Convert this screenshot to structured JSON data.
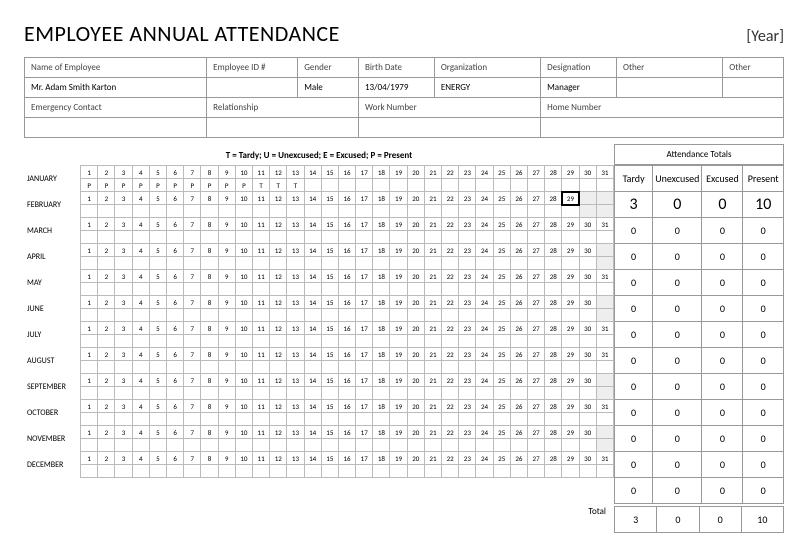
{
  "title": "EMPLOYEE ANNUAL ATTENDANCE",
  "year_label": "[Year]",
  "info": {
    "name_lbl": "Name of Employee",
    "name_val": "Mr. Adam Smith Karton",
    "empid_lbl": "Employee ID #",
    "empid_val": "",
    "gender_lbl": "Gender",
    "gender_val": "Male",
    "birth_lbl": "Birth Date",
    "birth_val": "13/04/1979",
    "org_lbl": "Organization",
    "org_val": "ENERGY",
    "desig_lbl": "Designation",
    "desig_val": "Manager",
    "other_lbl": "Other",
    "other2_lbl": "Other",
    "emerg_lbl": "Emergency Contact",
    "rel_lbl": "Relationship",
    "work_lbl": "Work Number",
    "home_lbl": "Home Number"
  },
  "legend": "T = Tardy; U = Unexcused; E = Excused; P = Present",
  "totals_header": "Attendance Totals",
  "tot_cols": {
    "t": "Tardy",
    "u": "Unexcused",
    "e": "Excused",
    "p": "Present"
  },
  "months": [
    {
      "name": "JANUARY",
      "days": 31,
      "highlight": null,
      "marks": {
        "1": "P",
        "2": "P",
        "3": "P",
        "4": "P",
        "5": "P",
        "6": "P",
        "7": "P",
        "8": "P",
        "9": "P",
        "10": "P",
        "11": "T",
        "12": "T",
        "13": "T"
      },
      "tot": [
        "3",
        "0",
        "0",
        "10"
      ],
      "big": true
    },
    {
      "name": "FEBRUARY",
      "days": 29,
      "highlight": 29,
      "marks": {},
      "tot": [
        "0",
        "0",
        "0",
        "0"
      ]
    },
    {
      "name": "MARCH",
      "days": 31,
      "highlight": null,
      "marks": {},
      "tot": [
        "0",
        "0",
        "0",
        "0"
      ]
    },
    {
      "name": "APRIL",
      "days": 30,
      "highlight": null,
      "marks": {},
      "tot": [
        "0",
        "0",
        "0",
        "0"
      ]
    },
    {
      "name": "MAY",
      "days": 31,
      "highlight": null,
      "marks": {},
      "tot": [
        "0",
        "0",
        "0",
        "0"
      ]
    },
    {
      "name": "JUNE",
      "days": 30,
      "highlight": null,
      "marks": {},
      "tot": [
        "0",
        "0",
        "0",
        "0"
      ]
    },
    {
      "name": "JULY",
      "days": 31,
      "highlight": null,
      "marks": {},
      "tot": [
        "0",
        "0",
        "0",
        "0"
      ]
    },
    {
      "name": "AUGUST",
      "days": 31,
      "highlight": null,
      "marks": {},
      "tot": [
        "0",
        "0",
        "0",
        "0"
      ]
    },
    {
      "name": "SEPTEMBER",
      "days": 30,
      "highlight": null,
      "marks": {},
      "tot": [
        "0",
        "0",
        "0",
        "0"
      ]
    },
    {
      "name": "OCTOBER",
      "days": 31,
      "highlight": null,
      "marks": {},
      "tot": [
        "0",
        "0",
        "0",
        "0"
      ]
    },
    {
      "name": "NOVEMBER",
      "days": 30,
      "highlight": null,
      "marks": {},
      "tot": [
        "0",
        "0",
        "0",
        "0"
      ]
    },
    {
      "name": "DECEMBER",
      "days": 31,
      "highlight": null,
      "marks": {},
      "tot": [
        "0",
        "0",
        "0",
        "0"
      ]
    }
  ],
  "grand_label": "Total",
  "grand": [
    "3",
    "0",
    "0",
    "10"
  ],
  "colors": {
    "border": "#999999",
    "cell_border": "#bbbbbb",
    "empty_bg": "#eeeeee",
    "bg": "#ffffff",
    "text": "#000000"
  }
}
